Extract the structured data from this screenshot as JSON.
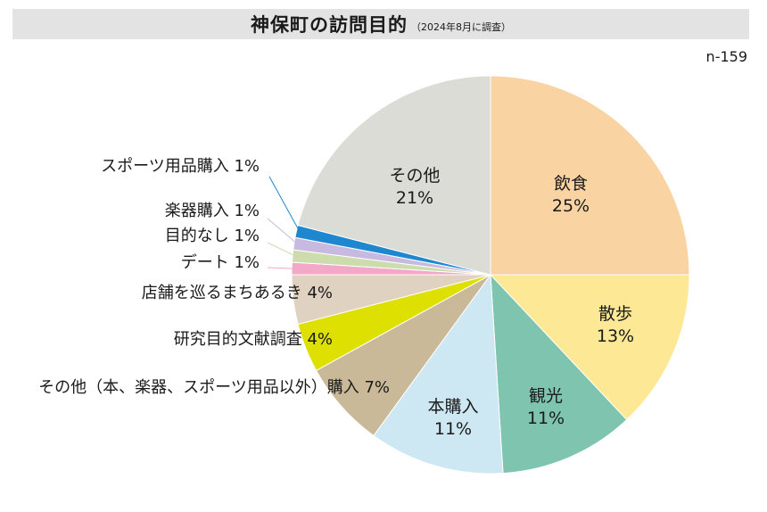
{
  "header": {
    "title": "神保町の訪問目的",
    "subtitle": "（2024年8月に調査）",
    "sample": "n-159"
  },
  "chart_data": {
    "type": "pie",
    "slices": [
      {
        "label": "飲食",
        "value": 25,
        "value_label": "25%",
        "color": "#f9d3a1"
      },
      {
        "label": "散歩",
        "value": 13,
        "value_label": "13%",
        "color": "#fde895"
      },
      {
        "label": "観光",
        "value": 11,
        "value_label": "11%",
        "color": "#7ec4ae"
      },
      {
        "label": "本購入",
        "value": 11,
        "value_label": "11%",
        "color": "#cde7f3"
      },
      {
        "label": "その他（本、楽器、スポーツ用品以外）購入",
        "value": 7,
        "value_label": "7%",
        "color": "#c9b998"
      },
      {
        "label": "研究目的文献調査",
        "value": 4,
        "value_label": "4%",
        "color": "#dee001"
      },
      {
        "label": "店舗を巡るまちあるき",
        "value": 4,
        "value_label": "4%",
        "color": "#e0d2c0"
      },
      {
        "label": "デート",
        "value": 1,
        "value_label": "1%",
        "color": "#f2a8c7"
      },
      {
        "label": "目的なし",
        "value": 1,
        "value_label": "1%",
        "color": "#cddcad"
      },
      {
        "label": "楽器購入",
        "value": 1,
        "value_label": "1%",
        "color": "#c8b9e0"
      },
      {
        "label": "スポーツ用品購入",
        "value": 1,
        "value_label": "1%",
        "color": "#1f87cf"
      },
      {
        "label": "その他",
        "value": 21,
        "value_label": "21%",
        "color": "#dadcd5"
      }
    ]
  }
}
